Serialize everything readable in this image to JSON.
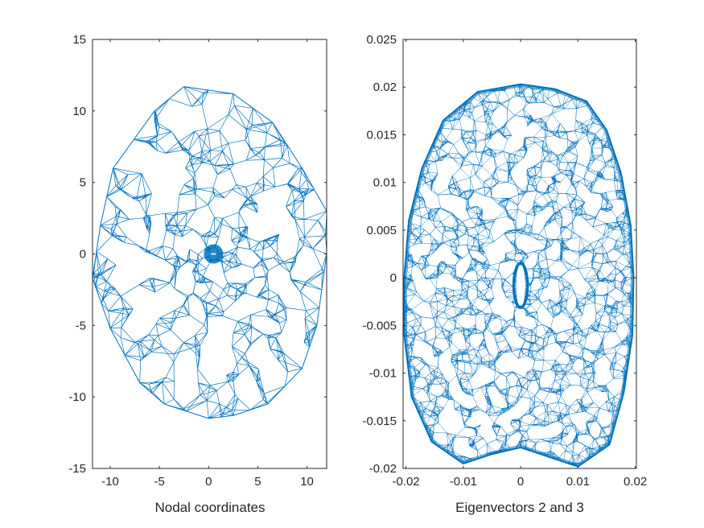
{
  "chart_data": [
    {
      "type": "mesh",
      "xlabel": "Nodal coordinates",
      "ylabel": "",
      "xlim": [
        -11.8,
        12
      ],
      "ylim": [
        -15,
        15
      ],
      "xticks": [
        -10,
        -5,
        0,
        5,
        10
      ],
      "yticks": [
        -15,
        -10,
        -5,
        0,
        5,
        10,
        15
      ],
      "xtick_labels": [
        "-10",
        "-5",
        "0",
        "5",
        "10"
      ],
      "ytick_labels": [
        "-15",
        "-10",
        "-5",
        "0",
        "5",
        "10",
        "15"
      ],
      "boundary": [
        [
          -2.5,
          11.7
        ],
        [
          2.5,
          11.2
        ],
        [
          6.5,
          9.2
        ],
        [
          9.5,
          6
        ],
        [
          12,
          3
        ],
        [
          12,
          0
        ],
        [
          11.5,
          -2.5
        ],
        [
          11,
          -5
        ],
        [
          9.5,
          -8
        ],
        [
          6,
          -10.5
        ],
        [
          2.5,
          -11.3
        ],
        [
          0,
          -11.5
        ],
        [
          -4.5,
          -10.5
        ],
        [
          -7,
          -9
        ],
        [
          -10,
          -5.2
        ],
        [
          -11.8,
          -1.7
        ],
        [
          -11,
          2
        ],
        [
          -9.7,
          6
        ],
        [
          -5.5,
          10
        ]
      ],
      "hole_center": [
        0.5,
        0
      ],
      "hole_radius": 0.4,
      "grid": false,
      "line_color": "#0072BD"
    },
    {
      "type": "mesh",
      "xlabel": "Eigenvectors 2 and 3",
      "ylabel": "",
      "xlim": [
        -0.0205,
        0.0202
      ],
      "ylim": [
        -0.02,
        0.025
      ],
      "xticks": [
        -0.02,
        -0.01,
        0,
        0.01,
        0.02
      ],
      "yticks": [
        -0.02,
        -0.015,
        -0.01,
        -0.005,
        0,
        0.005,
        0.01,
        0.015,
        0.02,
        0.025
      ],
      "xtick_labels": [
        "-0.02",
        "-0.01",
        "0",
        "0.01",
        "0.02"
      ],
      "ytick_labels": [
        "-0.02",
        "-0.015",
        "-0.01",
        "-0.005",
        "0",
        "0.005",
        "0.01",
        "0.015",
        "0.02",
        "0.025"
      ],
      "boundary": [
        [
          0,
          0.0203
        ],
        [
          0.006,
          0.0198
        ],
        [
          0.0115,
          0.0185
        ],
        [
          0.015,
          0.0155
        ],
        [
          0.0175,
          0.011
        ],
        [
          0.0192,
          0.0055
        ],
        [
          0.0197,
          0
        ],
        [
          0.0195,
          -0.006
        ],
        [
          0.018,
          -0.012
        ],
        [
          0.0155,
          -0.0175
        ],
        [
          0.01,
          -0.0198
        ],
        [
          0.005,
          -0.0188
        ],
        [
          0,
          -0.0178
        ],
        [
          -0.005,
          -0.0185
        ],
        [
          -0.01,
          -0.0195
        ],
        [
          -0.0155,
          -0.0172
        ],
        [
          -0.019,
          -0.0125
        ],
        [
          -0.0203,
          -0.006
        ],
        [
          -0.0203,
          0
        ],
        [
          -0.0195,
          0.006
        ],
        [
          -0.0172,
          0.0115
        ],
        [
          -0.0135,
          0.0165
        ],
        [
          -0.0075,
          0.0195
        ]
      ],
      "hole_center": [
        0,
        -0.0008
      ],
      "hole_radius_x": 0.0008,
      "hole_radius_y": 0.0021,
      "grid": false,
      "line_color": "#0072BD"
    }
  ]
}
